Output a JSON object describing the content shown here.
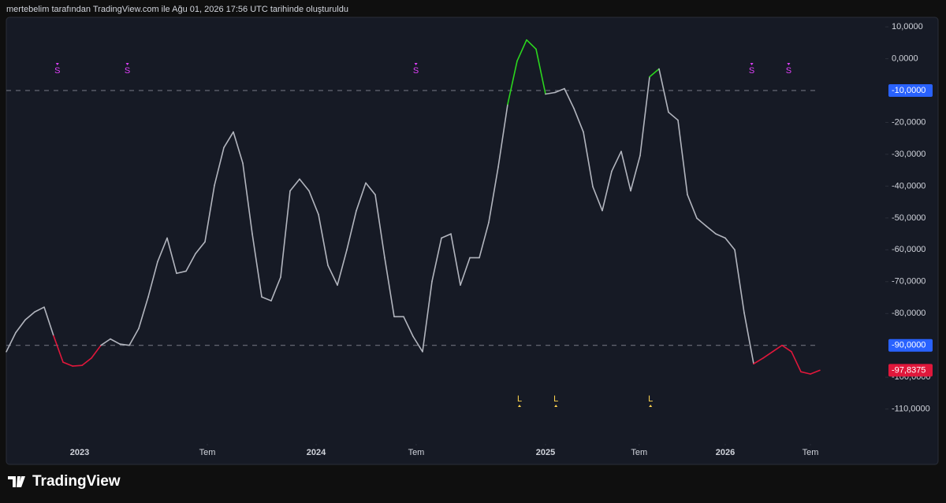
{
  "header": {
    "caption": "mertebelim tarafından TradingView.com ile Ağu 01, 2026 17:56 UTC tarihinde oluşturuldu"
  },
  "footer": {
    "brand": "TradingView"
  },
  "chart_data": {
    "type": "line",
    "color": "#b2b5be",
    "upper_color": "#2bd61e",
    "lower_color": "#e0173b",
    "values": [
      -92,
      -86,
      -82,
      -79.5,
      -78,
      -87,
      -95.3,
      -96.5,
      -96.3,
      -94,
      -90,
      -88,
      -89.6,
      -90,
      -84.7,
      -74.8,
      -63.7,
      -56.3,
      -67.4,
      -66.7,
      -61.2,
      -57.5,
      -39.8,
      -27.9,
      -23,
      -32.8,
      -55,
      -74.8,
      -76,
      -68.6,
      -41.5,
      -37.8,
      -41.5,
      -48.9,
      -64.9,
      -71.1,
      -60,
      -47.7,
      -39,
      -42.7,
      -62.5,
      -81,
      -81,
      -87.2,
      -92,
      -69.9,
      -56.3,
      -55,
      -71.1,
      -62.5,
      -62.5,
      -51.4,
      -34,
      -14.3,
      -0.7,
      5.9,
      3,
      -11.1,
      -10.6,
      -9.4,
      -15.6,
      -23,
      -40.2,
      -47.7,
      -35.3,
      -29.1,
      -41.5,
      -30.4,
      -5.7,
      -3.2,
      -16.8,
      -19.3,
      -42.7,
      -50.1,
      -52.6,
      -55,
      -56.3,
      -60,
      -79.8,
      -95.8,
      -94,
      -92,
      -90,
      -92,
      -98.3,
      -99,
      -97.8375
    ],
    "last_label": "-97,8375",
    "xlim": [
      0,
      86
    ],
    "xticks": [
      {
        "value": 7.75,
        "label": "2023"
      },
      {
        "value": 21.25,
        "label": "Tem"
      },
      {
        "value": 32.75,
        "label": "2024"
      },
      {
        "value": 43.33,
        "label": "Tem"
      },
      {
        "value": 57,
        "label": "2025"
      },
      {
        "value": 66.9,
        "label": "Tem"
      },
      {
        "value": 76,
        "label": "2026"
      },
      {
        "value": 85,
        "label": "Tem"
      }
    ],
    "ylim": [
      13,
      -118
    ],
    "yticks": [
      {
        "value": 10,
        "label": "10,0000"
      },
      {
        "value": 0,
        "label": "0,0000"
      },
      {
        "value": -20,
        "label": "-20,0000"
      },
      {
        "value": -30,
        "label": "-30,0000"
      },
      {
        "value": -40,
        "label": "-40,0000"
      },
      {
        "value": -50,
        "label": "-50,0000"
      },
      {
        "value": -60,
        "label": "-60,0000"
      },
      {
        "value": -70,
        "label": "-70,0000"
      },
      {
        "value": -80,
        "label": "-80,0000"
      },
      {
        "value": -100,
        "label": "-100,0000"
      },
      {
        "value": -110,
        "label": "-110,0000"
      }
    ],
    "hlines": [
      {
        "value": -10,
        "label": "-10,0000"
      },
      {
        "value": -90,
        "label": "-90,0000"
      }
    ],
    "signals_top": [
      {
        "x": 5.4,
        "label": "S"
      },
      {
        "x": 12.8,
        "label": "S"
      },
      {
        "x": 43.3,
        "label": "S"
      },
      {
        "x": 78.8,
        "label": "S"
      },
      {
        "x": 82.7,
        "label": "S"
      }
    ],
    "signals_bottom": [
      {
        "x": 54.25,
        "label": "L"
      },
      {
        "x": 58.1,
        "label": "L"
      },
      {
        "x": 68.1,
        "label": "L"
      }
    ]
  }
}
